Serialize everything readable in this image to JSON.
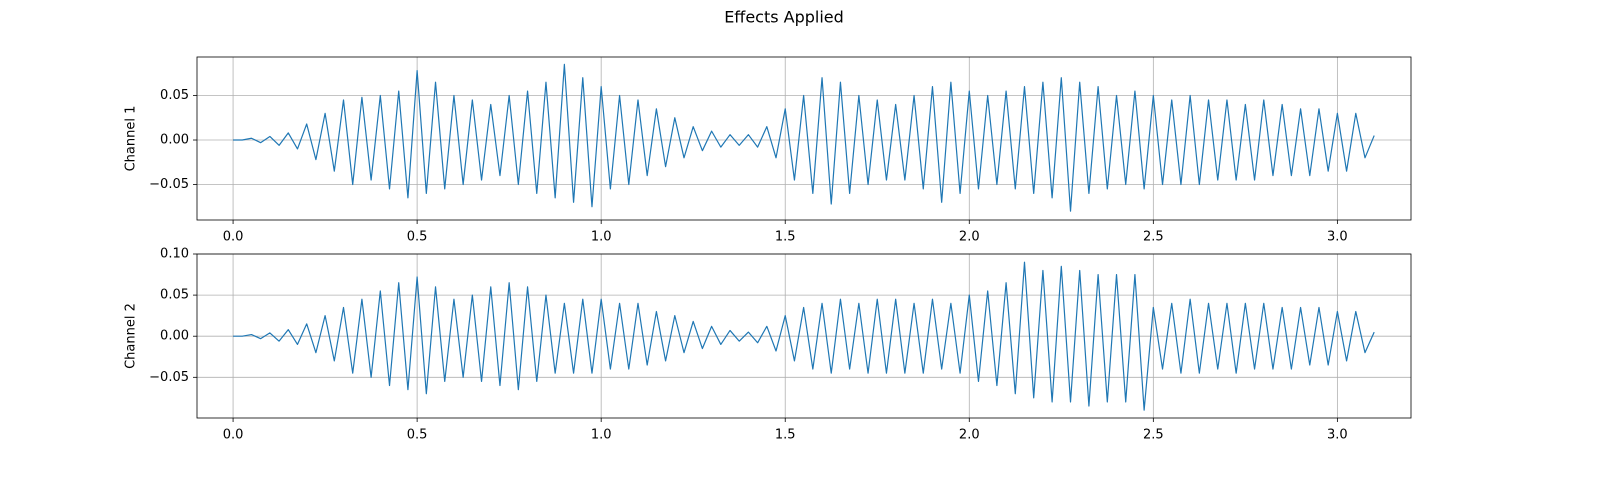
{
  "title": "Effects Applied",
  "chart_data": [
    {
      "type": "line",
      "ylabel": "Channel 1",
      "color": "#1f77b4",
      "grid": true,
      "xlim": [
        -0.098,
        3.2
      ],
      "xticks": [
        {
          "value": 0,
          "label": "0.0"
        },
        0.5,
        {
          "value": 1,
          "label": "1.0"
        },
        1.5,
        {
          "value": 2,
          "label": "2.0"
        },
        2.5,
        {
          "value": 3,
          "label": "3.0"
        }
      ],
      "ylim": [
        -0.0899,
        0.0933
      ],
      "yticks": [
        {
          "value": -0.05,
          "label": "−0.05"
        },
        {
          "value": 0,
          "label": "0.00"
        },
        0.05
      ],
      "x": [
        0,
        0.025,
        0.05,
        0.075,
        0.1,
        0.125,
        0.15,
        0.175,
        0.2,
        0.225,
        0.25,
        0.275,
        0.3,
        0.325,
        0.35,
        0.375,
        0.4,
        0.425,
        0.45,
        0.475,
        0.5,
        0.525,
        0.55,
        0.575,
        0.6,
        0.625,
        0.65,
        0.675,
        0.7,
        0.725,
        0.75,
        0.775,
        0.8,
        0.825,
        0.85,
        0.875,
        0.9,
        0.925,
        0.95,
        0.975,
        1.0,
        1.025,
        1.05,
        1.075,
        1.1,
        1.125,
        1.15,
        1.175,
        1.2,
        1.225,
        1.25,
        1.275,
        1.3,
        1.325,
        1.35,
        1.375,
        1.4,
        1.425,
        1.45,
        1.475,
        1.5,
        1.525,
        1.55,
        1.575,
        1.6,
        1.625,
        1.65,
        1.675,
        1.7,
        1.725,
        1.75,
        1.775,
        1.8,
        1.825,
        1.85,
        1.875,
        1.9,
        1.925,
        1.95,
        1.975,
        2.0,
        2.025,
        2.05,
        2.075,
        2.1,
        2.125,
        2.15,
        2.175,
        2.2,
        2.225,
        2.25,
        2.275,
        2.3,
        2.325,
        2.35,
        2.375,
        2.4,
        2.425,
        2.45,
        2.475,
        2.5,
        2.525,
        2.55,
        2.575,
        2.6,
        2.625,
        2.65,
        2.675,
        2.7,
        2.725,
        2.75,
        2.775,
        2.8,
        2.825,
        2.85,
        2.875,
        2.9,
        2.925,
        2.95,
        2.975,
        3.0,
        3.025,
        3.05,
        3.075,
        3.1
      ],
      "values": [
        0,
        0,
        0.002,
        -0.003,
        0.004,
        -0.006,
        0.008,
        -0.01,
        0.018,
        -0.022,
        0.03,
        -0.035,
        0.045,
        -0.05,
        0.048,
        -0.045,
        0.05,
        -0.055,
        0.055,
        -0.065,
        0.078,
        -0.06,
        0.065,
        -0.055,
        0.05,
        -0.05,
        0.045,
        -0.045,
        0.04,
        -0.04,
        0.05,
        -0.05,
        0.055,
        -0.06,
        0.065,
        -0.065,
        0.085,
        -0.07,
        0.07,
        -0.075,
        0.06,
        -0.055,
        0.05,
        -0.05,
        0.045,
        -0.04,
        0.035,
        -0.03,
        0.025,
        -0.02,
        0.015,
        -0.012,
        0.01,
        -0.008,
        0.006,
        -0.006,
        0.006,
        -0.008,
        0.015,
        -0.02,
        0.035,
        -0.045,
        0.05,
        -0.06,
        0.07,
        -0.072,
        0.065,
        -0.06,
        0.05,
        -0.05,
        0.045,
        -0.045,
        0.04,
        -0.045,
        0.05,
        -0.055,
        0.06,
        -0.07,
        0.065,
        -0.06,
        0.055,
        -0.055,
        0.05,
        -0.05,
        0.055,
        -0.055,
        0.06,
        -0.06,
        0.065,
        -0.065,
        0.07,
        -0.08,
        0.065,
        -0.06,
        0.06,
        -0.055,
        0.05,
        -0.05,
        0.055,
        -0.055,
        0.05,
        -0.05,
        0.045,
        -0.05,
        0.05,
        -0.05,
        0.045,
        -0.045,
        0.045,
        -0.045,
        0.04,
        -0.045,
        0.045,
        -0.04,
        0.04,
        -0.04,
        0.035,
        -0.04,
        0.035,
        -0.035,
        0.03,
        -0.035,
        0.03,
        -0.02,
        0.005
      ]
    },
    {
      "type": "line",
      "ylabel": "Channel 2",
      "color": "#1f77b4",
      "grid": true,
      "xlim": [
        -0.098,
        3.2
      ],
      "xticks": [
        {
          "value": 0,
          "label": "0.0"
        },
        0.5,
        {
          "value": 1,
          "label": "1.0"
        },
        1.5,
        {
          "value": 2,
          "label": "2.0"
        },
        2.5,
        {
          "value": 3,
          "label": "3.0"
        }
      ],
      "ylim": [
        -0.0995,
        0.1
      ],
      "yticks": [
        {
          "value": -0.05,
          "label": "−0.05"
        },
        {
          "value": 0,
          "label": "0.00"
        },
        0.05,
        {
          "value": 0.1,
          "label": "0.10"
        }
      ],
      "x": [
        0,
        0.025,
        0.05,
        0.075,
        0.1,
        0.125,
        0.15,
        0.175,
        0.2,
        0.225,
        0.25,
        0.275,
        0.3,
        0.325,
        0.35,
        0.375,
        0.4,
        0.425,
        0.45,
        0.475,
        0.5,
        0.525,
        0.55,
        0.575,
        0.6,
        0.625,
        0.65,
        0.675,
        0.7,
        0.725,
        0.75,
        0.775,
        0.8,
        0.825,
        0.85,
        0.875,
        0.9,
        0.925,
        0.95,
        0.975,
        1.0,
        1.025,
        1.05,
        1.075,
        1.1,
        1.125,
        1.15,
        1.175,
        1.2,
        1.225,
        1.25,
        1.275,
        1.3,
        1.325,
        1.35,
        1.375,
        1.4,
        1.425,
        1.45,
        1.475,
        1.5,
        1.525,
        1.55,
        1.575,
        1.6,
        1.625,
        1.65,
        1.675,
        1.7,
        1.725,
        1.75,
        1.775,
        1.8,
        1.825,
        1.85,
        1.875,
        1.9,
        1.925,
        1.95,
        1.975,
        2.0,
        2.025,
        2.05,
        2.075,
        2.1,
        2.125,
        2.15,
        2.175,
        2.2,
        2.225,
        2.25,
        2.275,
        2.3,
        2.325,
        2.35,
        2.375,
        2.4,
        2.425,
        2.45,
        2.475,
        2.5,
        2.525,
        2.55,
        2.575,
        2.6,
        2.625,
        2.65,
        2.675,
        2.7,
        2.725,
        2.75,
        2.775,
        2.8,
        2.825,
        2.85,
        2.875,
        2.9,
        2.925,
        2.95,
        2.975,
        3.0,
        3.025,
        3.05,
        3.075,
        3.1
      ],
      "values": [
        0,
        0,
        0.002,
        -0.003,
        0.004,
        -0.006,
        0.008,
        -0.01,
        0.015,
        -0.02,
        0.025,
        -0.03,
        0.035,
        -0.045,
        0.045,
        -0.05,
        0.055,
        -0.06,
        0.065,
        -0.065,
        0.072,
        -0.07,
        0.06,
        -0.055,
        0.045,
        -0.05,
        0.05,
        -0.055,
        0.06,
        -0.06,
        0.065,
        -0.065,
        0.06,
        -0.055,
        0.05,
        -0.045,
        0.04,
        -0.045,
        0.045,
        -0.045,
        0.045,
        -0.04,
        0.04,
        -0.04,
        0.04,
        -0.035,
        0.03,
        -0.03,
        0.025,
        -0.02,
        0.018,
        -0.015,
        0.012,
        -0.01,
        0.007,
        -0.006,
        0.005,
        -0.008,
        0.012,
        -0.018,
        0.025,
        -0.03,
        0.035,
        -0.04,
        0.04,
        -0.045,
        0.045,
        -0.04,
        0.04,
        -0.045,
        0.045,
        -0.045,
        0.045,
        -0.045,
        0.04,
        -0.045,
        0.045,
        -0.04,
        0.04,
        -0.045,
        0.05,
        -0.055,
        0.055,
        -0.06,
        0.065,
        -0.07,
        0.09,
        -0.075,
        0.08,
        -0.08,
        0.085,
        -0.08,
        0.08,
        -0.085,
        0.075,
        -0.08,
        0.075,
        -0.08,
        0.075,
        -0.09,
        0.035,
        -0.04,
        0.04,
        -0.045,
        0.045,
        -0.045,
        0.04,
        -0.04,
        0.04,
        -0.045,
        0.04,
        -0.04,
        0.04,
        -0.04,
        0.035,
        -0.04,
        0.035,
        -0.035,
        0.035,
        -0.035,
        0.03,
        -0.03,
        0.03,
        -0.02,
        0.005
      ]
    }
  ]
}
